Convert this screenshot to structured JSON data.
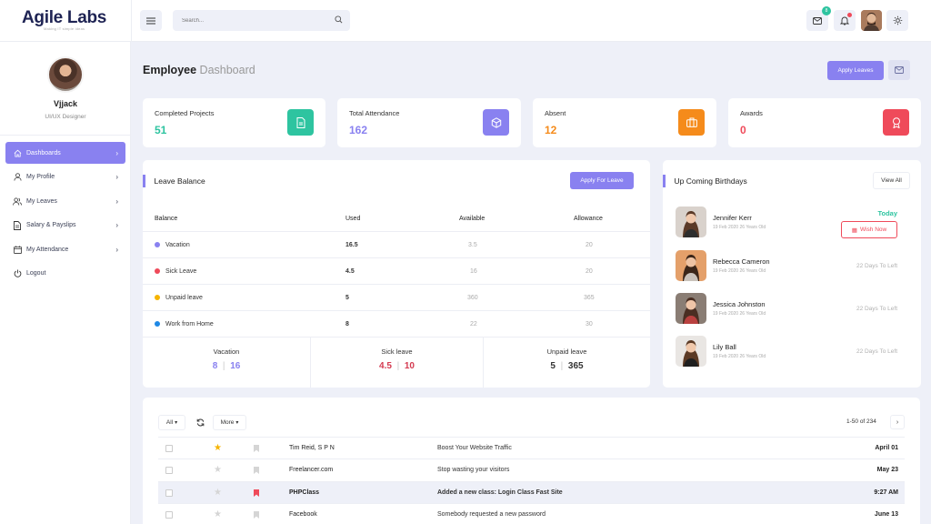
{
  "brand": {
    "name": "Agile Labs",
    "tagline": "Making IT simple ideas"
  },
  "search": {
    "placeholder": "Search..."
  },
  "header": {
    "messages_badge": "8"
  },
  "colors": {
    "accent": "#8981f0",
    "green": "#2ec4a0",
    "orange": "#f58b1b",
    "red": "#ef4a5a"
  },
  "profile": {
    "name": "Vjjack",
    "role": "UI/UX Designer"
  },
  "sidebar": {
    "items": [
      {
        "label": "Dashboards",
        "icon": "home-icon",
        "active": true
      },
      {
        "label": "My Profile",
        "icon": "user-icon"
      },
      {
        "label": "My Leaves",
        "icon": "users-icon"
      },
      {
        "label": "Salary & Payslips",
        "icon": "document-icon"
      },
      {
        "label": "My Attendance",
        "icon": "calendar-icon"
      },
      {
        "label": "Logout",
        "icon": "power-icon"
      }
    ]
  },
  "page": {
    "title": "Employee",
    "subtitle": "Dashboard",
    "apply_leaves": "Apply Leaves"
  },
  "stats": [
    {
      "label": "Completed Projects",
      "value": "51",
      "color": "#2ec4a0",
      "icon": "file-icon"
    },
    {
      "label": "Total Attendance",
      "value": "162",
      "color": "#8981f0",
      "icon": "cube-icon"
    },
    {
      "label": "Absent",
      "value": "12",
      "color": "#f58b1b",
      "icon": "briefcase-icon"
    },
    {
      "label": "Awards",
      "value": "0",
      "color": "#ef4a5a",
      "icon": "award-icon"
    }
  ],
  "leave_balance": {
    "title": "Leave Balance",
    "apply_button": "Apply For Leave",
    "columns": [
      "Balance",
      "Used",
      "Available",
      "Allowance"
    ],
    "rows": [
      {
        "type": "Vacation",
        "used": "16.5",
        "available": "3.5",
        "allowance": "20",
        "color": "#8981f0"
      },
      {
        "type": "Sick Leave",
        "used": "4.5",
        "available": "16",
        "allowance": "20",
        "color": "#ef4a5a"
      },
      {
        "type": "Unpaid leave",
        "used": "5",
        "available": "360",
        "allowance": "365",
        "color": "#f6b400"
      },
      {
        "type": "Work from Home",
        "used": "8",
        "available": "22",
        "allowance": "30",
        "color": "#1e88e5"
      }
    ],
    "summary": [
      {
        "label": "Vacation",
        "a": "8",
        "b": "16",
        "color": "#8981f0"
      },
      {
        "label": "Sick leave",
        "a": "4.5",
        "b": "10",
        "color": "#d43a50"
      },
      {
        "label": "Unpaid leave",
        "a": "5",
        "b": "365",
        "color": "#333333"
      }
    ]
  },
  "birthdays": {
    "title": "Up Coming Birthdays",
    "view_all": "View All",
    "today_label": "Today",
    "wish_button": "Wish Now",
    "items": [
      {
        "name": "Jennifer Kerr",
        "detail": "19 Feb 2020 26 Years Old",
        "right": ""
      },
      {
        "name": "Rebecca Cameron",
        "detail": "19 Feb 2020 26 Years Old",
        "right": "22 Days To Left"
      },
      {
        "name": "Jessica Johnston",
        "detail": "19 Feb 2020 26 Years Old",
        "right": "22 Days To Left"
      },
      {
        "name": "Lily Ball",
        "detail": "19 Feb 2020 26 Years Old",
        "right": "22 Days To Left"
      }
    ]
  },
  "mail": {
    "filter": "All",
    "more": "More",
    "pager": "1-50 of 234",
    "rows": [
      {
        "from": "Tim Reid, S P N",
        "subject": "Boost Your Website Traffic",
        "date": "April 01",
        "starred": true,
        "flagged": false,
        "unread": false
      },
      {
        "from": "Freelancer.com",
        "subject": "Stop wasting your visitors",
        "date": "May 23",
        "starred": false,
        "flagged": false,
        "unread": false
      },
      {
        "from": "PHPClass",
        "subject": "Added a new class: Login Class Fast Site",
        "date": "9:27 AM",
        "starred": false,
        "flagged": true,
        "unread": true
      },
      {
        "from": "Facebook",
        "subject": "Somebody requested a new password",
        "date": "June 13",
        "starred": false,
        "flagged": false,
        "unread": false
      }
    ]
  }
}
